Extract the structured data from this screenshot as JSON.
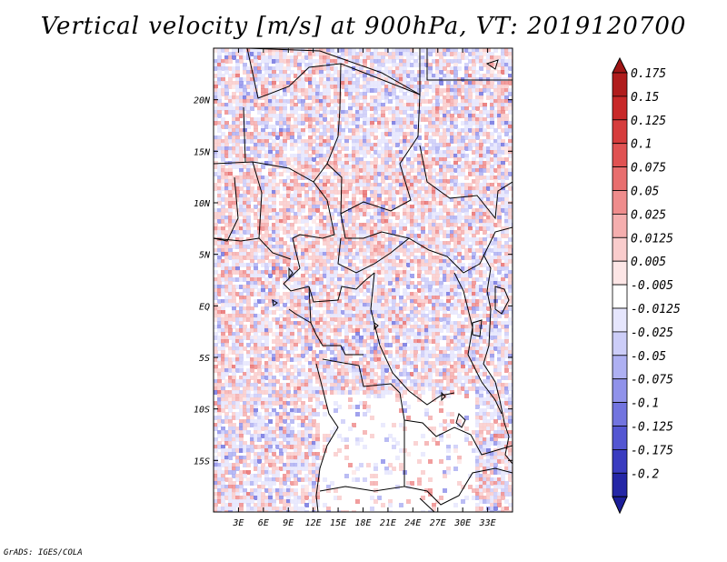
{
  "title": "Vertical velocity [m/s] at 900hPa, VT: 2019120700",
  "credit": "GrADS: IGES/COLA",
  "map": {
    "lon_range": [
      0,
      36
    ],
    "lat_range": [
      -20,
      25
    ],
    "lat_ticks": [
      {
        "value": 20,
        "label": "20N"
      },
      {
        "value": 15,
        "label": "15N"
      },
      {
        "value": 10,
        "label": "10N"
      },
      {
        "value": 5,
        "label": "5N"
      },
      {
        "value": 0,
        "label": "EQ"
      },
      {
        "value": -5,
        "label": "5S"
      },
      {
        "value": -10,
        "label": "10S"
      },
      {
        "value": -15,
        "label": "15S"
      }
    ],
    "lon_ticks": [
      {
        "value": 3,
        "label": "3E"
      },
      {
        "value": 6,
        "label": "6E"
      },
      {
        "value": 9,
        "label": "9E"
      },
      {
        "value": 12,
        "label": "12E"
      },
      {
        "value": 15,
        "label": "15E"
      },
      {
        "value": 18,
        "label": "18E"
      },
      {
        "value": 21,
        "label": "21E"
      },
      {
        "value": 24,
        "label": "24E"
      },
      {
        "value": 27,
        "label": "27E"
      },
      {
        "value": 30,
        "label": "30E"
      },
      {
        "value": 33,
        "label": "33E"
      }
    ]
  },
  "colorbar": {
    "levels": [
      {
        "label": "0.175",
        "color": "#b01c1c"
      },
      {
        "label": "0.15",
        "color": "#c82828"
      },
      {
        "label": "0.125",
        "color": "#d63c3c"
      },
      {
        "label": "0.1",
        "color": "#e05252"
      },
      {
        "label": "0.075",
        "color": "#e86e6e"
      },
      {
        "label": "0.05",
        "color": "#ef8c8c"
      },
      {
        "label": "0.025",
        "color": "#f5aeae"
      },
      {
        "label": "0.0125",
        "color": "#f9cccc"
      },
      {
        "label": "0.005",
        "color": "#fde6e6"
      },
      {
        "label": "-0.005",
        "color": "#ffffff"
      },
      {
        "label": "-0.0125",
        "color": "#e6e6fd"
      },
      {
        "label": "-0.025",
        "color": "#cccdf8"
      },
      {
        "label": "-0.05",
        "color": "#aeb0f2"
      },
      {
        "label": "-0.075",
        "color": "#9092ea"
      },
      {
        "label": "-0.1",
        "color": "#7274df"
      },
      {
        "label": "-0.125",
        "color": "#5456d2"
      },
      {
        "label": "-0.175",
        "color": "#3a3cc0"
      },
      {
        "label": "-0.2",
        "color": "#2426a6"
      }
    ],
    "top_arrow_color": "#a01616",
    "bottom_arrow_color": "#1c1e9a"
  }
}
